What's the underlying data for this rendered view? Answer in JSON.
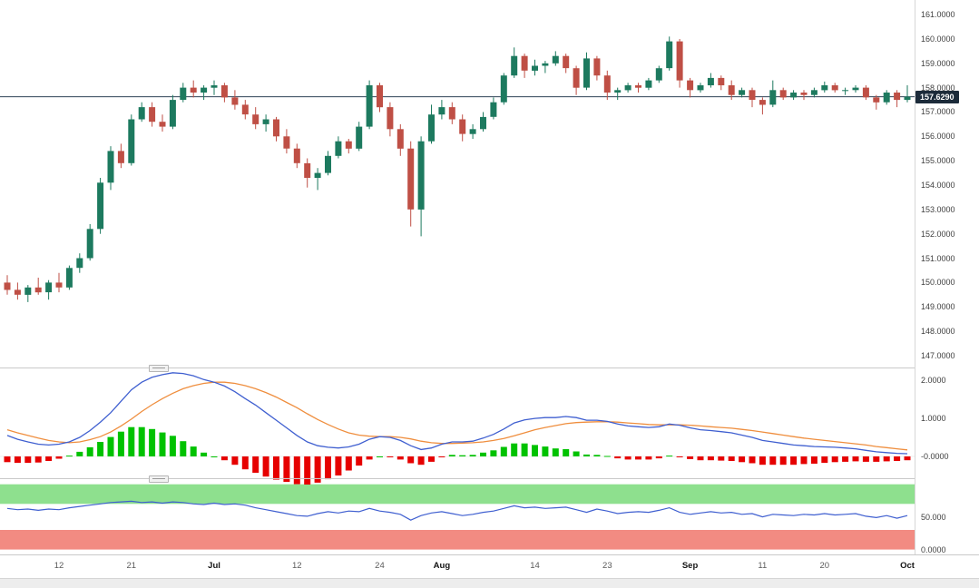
{
  "chart_data": {
    "type": "candlestick",
    "x_axis_labels": [
      {
        "index": 5,
        "label": "12",
        "bold": false
      },
      {
        "index": 12,
        "label": "21",
        "bold": false
      },
      {
        "index": 20,
        "label": "Jul",
        "bold": true
      },
      {
        "index": 28,
        "label": "12",
        "bold": false
      },
      {
        "index": 36,
        "label": "24",
        "bold": false
      },
      {
        "index": 42,
        "label": "Aug",
        "bold": true
      },
      {
        "index": 51,
        "label": "14",
        "bold": false
      },
      {
        "index": 58,
        "label": "23",
        "bold": false
      },
      {
        "index": 66,
        "label": "Sep",
        "bold": true
      },
      {
        "index": 73,
        "label": "11",
        "bold": false
      },
      {
        "index": 79,
        "label": "20",
        "bold": false
      },
      {
        "index": 87,
        "label": "Oct",
        "bold": true
      }
    ],
    "main": {
      "ylim": [
        146.55,
        161.6
      ],
      "ticks": [
        "161.0000",
        "160.0000",
        "159.0000",
        "158.0000",
        "157.0000",
        "156.0000",
        "155.0000",
        "154.0000",
        "153.0000",
        "152.0000",
        "151.0000",
        "150.0000",
        "149.0000",
        "148.0000",
        "147.0000"
      ],
      "current_price": 157.629,
      "current_price_label": "157.6290",
      "candles": [
        [
          150.0,
          150.3,
          149.5,
          149.7
        ],
        [
          149.7,
          150.0,
          149.3,
          149.5
        ],
        [
          149.5,
          149.9,
          149.2,
          149.8
        ],
        [
          149.8,
          150.2,
          149.5,
          149.6
        ],
        [
          149.6,
          150.1,
          149.3,
          150.0
        ],
        [
          150.0,
          150.4,
          149.6,
          149.8
        ],
        [
          149.8,
          150.7,
          149.7,
          150.6
        ],
        [
          150.6,
          151.2,
          150.4,
          151.0
        ],
        [
          151.0,
          152.4,
          150.9,
          152.2
        ],
        [
          152.2,
          154.3,
          152.0,
          154.1
        ],
        [
          154.1,
          155.6,
          153.8,
          155.4
        ],
        [
          155.4,
          155.7,
          154.7,
          154.9
        ],
        [
          154.9,
          156.9,
          154.8,
          156.7
        ],
        [
          156.7,
          157.4,
          156.6,
          157.2
        ],
        [
          157.2,
          157.4,
          156.4,
          156.6
        ],
        [
          156.6,
          156.9,
          156.2,
          156.4
        ],
        [
          156.4,
          157.7,
          156.3,
          157.5
        ],
        [
          157.5,
          158.2,
          157.4,
          158.0
        ],
        [
          158.0,
          158.3,
          157.6,
          157.8
        ],
        [
          157.8,
          158.1,
          157.5,
          158.0
        ],
        [
          158.0,
          158.3,
          157.7,
          158.1
        ],
        [
          158.1,
          158.2,
          157.4,
          157.6
        ],
        [
          157.6,
          157.9,
          157.1,
          157.3
        ],
        [
          157.3,
          157.5,
          156.7,
          156.9
        ],
        [
          156.9,
          157.2,
          156.3,
          156.5
        ],
        [
          156.5,
          156.9,
          156.2,
          156.7
        ],
        [
          156.7,
          156.8,
          155.8,
          156.0
        ],
        [
          156.0,
          156.3,
          155.3,
          155.5
        ],
        [
          155.5,
          155.7,
          154.7,
          154.9
        ],
        [
          154.9,
          155.1,
          153.9,
          154.3
        ],
        [
          154.3,
          154.7,
          153.8,
          154.5
        ],
        [
          154.5,
          155.4,
          154.4,
          155.2
        ],
        [
          155.2,
          156.0,
          155.1,
          155.8
        ],
        [
          155.8,
          155.9,
          155.3,
          155.5
        ],
        [
          155.5,
          156.6,
          155.4,
          156.4
        ],
        [
          156.4,
          158.3,
          156.3,
          158.1
        ],
        [
          158.1,
          158.2,
          157.0,
          157.2
        ],
        [
          157.2,
          157.4,
          156.0,
          156.3
        ],
        [
          156.3,
          156.5,
          155.2,
          155.5
        ],
        [
          155.5,
          155.8,
          152.3,
          153.0
        ],
        [
          153.0,
          156.0,
          151.9,
          155.8
        ],
        [
          155.8,
          157.3,
          155.7,
          156.9
        ],
        [
          156.9,
          157.5,
          156.7,
          157.2
        ],
        [
          157.2,
          157.4,
          156.5,
          156.7
        ],
        [
          156.7,
          156.9,
          155.8,
          156.1
        ],
        [
          156.1,
          156.5,
          155.9,
          156.3
        ],
        [
          156.3,
          157.0,
          156.2,
          156.8
        ],
        [
          156.8,
          157.6,
          156.7,
          157.4
        ],
        [
          157.4,
          158.6,
          157.3,
          158.5
        ],
        [
          158.5,
          159.65,
          158.4,
          159.3
        ],
        [
          159.3,
          159.4,
          158.4,
          158.7
        ],
        [
          158.7,
          159.15,
          158.5,
          158.9
        ],
        [
          158.9,
          159.1,
          158.6,
          159.0
        ],
        [
          159.0,
          159.5,
          158.9,
          159.3
        ],
        [
          159.3,
          159.4,
          158.6,
          158.8
        ],
        [
          158.8,
          158.9,
          157.7,
          158.0
        ],
        [
          158.0,
          159.45,
          157.9,
          159.2
        ],
        [
          159.2,
          159.3,
          158.3,
          158.5
        ],
        [
          158.5,
          158.7,
          157.5,
          157.8
        ],
        [
          157.8,
          158.0,
          157.5,
          157.9
        ],
        [
          157.9,
          158.2,
          157.8,
          158.1
        ],
        [
          158.1,
          158.2,
          157.8,
          158.0
        ],
        [
          158.0,
          158.4,
          157.9,
          158.3
        ],
        [
          158.3,
          158.9,
          158.2,
          158.8
        ],
        [
          158.8,
          160.1,
          158.7,
          159.9
        ],
        [
          159.9,
          160.0,
          158.0,
          158.3
        ],
        [
          158.3,
          158.4,
          157.6,
          157.9
        ],
        [
          157.9,
          158.2,
          157.8,
          158.1
        ],
        [
          158.1,
          158.6,
          158.0,
          158.4
        ],
        [
          158.4,
          158.5,
          157.9,
          158.1
        ],
        [
          158.1,
          158.3,
          157.5,
          157.7
        ],
        [
          157.7,
          158.0,
          157.6,
          157.9
        ],
        [
          157.9,
          158.0,
          157.2,
          157.5
        ],
        [
          157.5,
          157.6,
          156.9,
          157.3
        ],
        [
          157.3,
          158.3,
          157.2,
          157.9
        ],
        [
          157.9,
          158.0,
          157.5,
          157.6
        ],
        [
          157.6,
          157.9,
          157.5,
          157.8
        ],
        [
          157.8,
          157.9,
          157.5,
          157.7
        ],
        [
          157.7,
          158.0,
          157.6,
          157.9
        ],
        [
          157.9,
          158.25,
          157.8,
          158.1
        ],
        [
          158.1,
          158.2,
          157.8,
          157.9
        ],
        [
          157.9,
          158.0,
          157.7,
          157.9
        ],
        [
          157.9,
          158.1,
          157.8,
          158.0
        ],
        [
          158.0,
          158.1,
          157.5,
          157.6
        ],
        [
          157.6,
          157.7,
          157.1,
          157.4
        ],
        [
          157.4,
          157.9,
          157.3,
          157.8
        ],
        [
          157.8,
          157.9,
          157.2,
          157.5
        ],
        [
          157.5,
          158.1,
          157.4,
          157.63
        ]
      ]
    },
    "macd": {
      "ylim": [
        -0.55,
        2.29
      ],
      "ticks": [
        "2.0000",
        "1.0000",
        "-0.0000"
      ],
      "macd_line": [
        0.55,
        0.45,
        0.38,
        0.32,
        0.3,
        0.32,
        0.38,
        0.5,
        0.68,
        0.9,
        1.15,
        1.45,
        1.75,
        1.95,
        2.08,
        2.15,
        2.2,
        2.18,
        2.12,
        2.02,
        1.95,
        1.85,
        1.7,
        1.52,
        1.35,
        1.15,
        0.95,
        0.75,
        0.55,
        0.38,
        0.28,
        0.24,
        0.22,
        0.25,
        0.32,
        0.45,
        0.52,
        0.5,
        0.42,
        0.28,
        0.18,
        0.22,
        0.32,
        0.38,
        0.38,
        0.4,
        0.48,
        0.58,
        0.72,
        0.88,
        0.96,
        1.0,
        1.02,
        1.02,
        1.05,
        1.02,
        0.95,
        0.95,
        0.92,
        0.85,
        0.8,
        0.78,
        0.76,
        0.78,
        0.85,
        0.82,
        0.75,
        0.7,
        0.68,
        0.65,
        0.62,
        0.56,
        0.5,
        0.42,
        0.38,
        0.34,
        0.3,
        0.28,
        0.26,
        0.25,
        0.24,
        0.22,
        0.2,
        0.16,
        0.12,
        0.1,
        0.08,
        0.07
      ],
      "signal_line": [
        0.7,
        0.62,
        0.55,
        0.48,
        0.42,
        0.38,
        0.36,
        0.38,
        0.44,
        0.52,
        0.64,
        0.8,
        0.98,
        1.18,
        1.36,
        1.52,
        1.66,
        1.78,
        1.86,
        1.92,
        1.95,
        1.95,
        1.92,
        1.86,
        1.78,
        1.68,
        1.56,
        1.42,
        1.28,
        1.12,
        0.97,
        0.84,
        0.72,
        0.62,
        0.56,
        0.53,
        0.52,
        0.52,
        0.5,
        0.46,
        0.4,
        0.36,
        0.34,
        0.34,
        0.35,
        0.36,
        0.38,
        0.42,
        0.47,
        0.54,
        0.62,
        0.7,
        0.76,
        0.81,
        0.86,
        0.89,
        0.9,
        0.91,
        0.91,
        0.9,
        0.88,
        0.86,
        0.84,
        0.83,
        0.83,
        0.83,
        0.82,
        0.8,
        0.78,
        0.76,
        0.74,
        0.71,
        0.68,
        0.64,
        0.6,
        0.56,
        0.52,
        0.48,
        0.45,
        0.42,
        0.39,
        0.36,
        0.33,
        0.3,
        0.26,
        0.23,
        0.2,
        0.17
      ],
      "histogram": [
        -0.15,
        -0.17,
        -0.17,
        -0.16,
        -0.12,
        -0.06,
        0.02,
        0.12,
        0.24,
        0.38,
        0.51,
        0.65,
        0.77,
        0.77,
        0.72,
        0.63,
        0.54,
        0.4,
        0.26,
        0.1,
        0.0,
        -0.1,
        -0.22,
        -0.34,
        -0.43,
        -0.53,
        -0.61,
        -0.67,
        -0.73,
        -0.74,
        -0.69,
        -0.6,
        -0.5,
        -0.37,
        -0.24,
        -0.08,
        0.0,
        -0.02,
        -0.08,
        -0.18,
        -0.22,
        -0.14,
        -0.02,
        0.04,
        0.03,
        0.04,
        0.1,
        0.16,
        0.25,
        0.34,
        0.34,
        0.3,
        0.26,
        0.21,
        0.19,
        0.13,
        0.05,
        0.04,
        0.01,
        -0.05,
        -0.08,
        -0.08,
        -0.08,
        -0.05,
        0.02,
        -0.01,
        -0.07,
        -0.1,
        -0.1,
        -0.11,
        -0.12,
        -0.15,
        -0.18,
        -0.22,
        -0.22,
        -0.22,
        -0.22,
        -0.2,
        -0.19,
        -0.17,
        -0.15,
        -0.14,
        -0.13,
        -0.14,
        -0.14,
        -0.13,
        -0.12,
        -0.1
      ]
    },
    "rsi": {
      "ylim": [
        -7.5,
        106.5
      ],
      "ticks": [
        "50.000",
        "0.0000"
      ],
      "overbought_band": [
        70,
        100
      ],
      "oversold_band": [
        0,
        30
      ],
      "values": [
        63,
        61,
        62,
        60,
        62,
        61,
        64,
        66,
        68,
        70,
        72,
        73,
        74,
        72,
        73,
        71,
        73,
        72,
        70,
        69,
        71,
        69,
        70,
        68,
        64,
        61,
        58,
        55,
        52,
        51,
        55,
        58,
        56,
        59,
        58,
        63,
        59,
        57,
        54,
        45,
        52,
        56,
        58,
        55,
        52,
        54,
        57,
        59,
        63,
        67,
        64,
        65,
        63,
        64,
        65,
        61,
        57,
        62,
        59,
        55,
        57,
        58,
        57,
        60,
        64,
        57,
        54,
        56,
        58,
        56,
        57,
        54,
        55,
        50,
        54,
        53,
        52,
        54,
        53,
        55,
        53,
        54,
        55,
        51,
        49,
        52,
        48,
        52
      ]
    },
    "colors": {
      "candle_up": "#1d7a5f",
      "candle_down": "#bf4f45",
      "macd_line": "#3f5fd0",
      "signal_line": "#ef8e3e",
      "histogram_up": "#00c200",
      "histogram_down": "#e60000",
      "rsi_line": "#3f5fd0",
      "overbought_band": "#8ee08e",
      "oversold_band": "#f28b82",
      "price_line": "#2f4256",
      "price_badge_bg": "#1c2b3a"
    }
  }
}
